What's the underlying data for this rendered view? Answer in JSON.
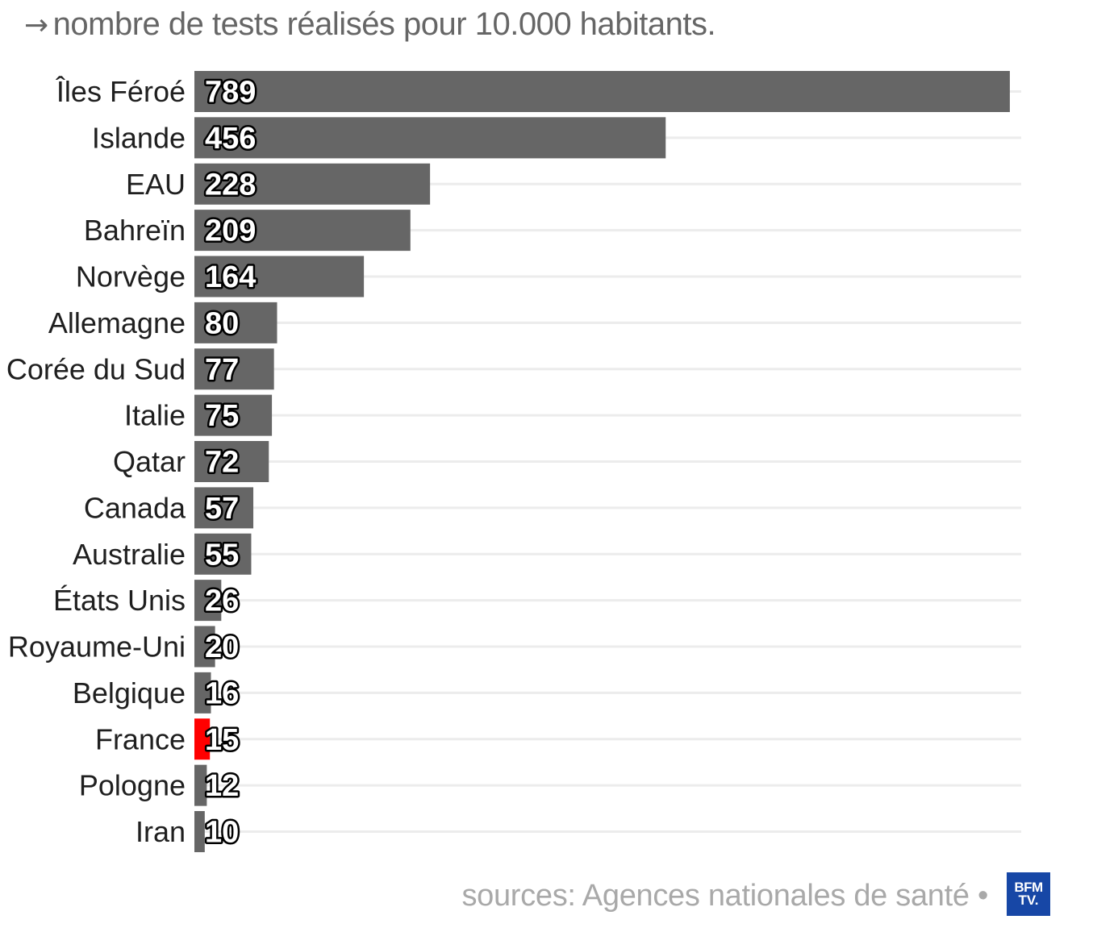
{
  "header": {
    "arrow_glyph": "→",
    "subtitle": "nombre de tests réalisés pour 10.000 habitants."
  },
  "chart_data": {
    "type": "bar",
    "orientation": "horizontal",
    "categories": [
      "Îles Féroé",
      "Islande",
      "EAU",
      "Bahreïn",
      "Norvège",
      "Allemagne",
      "Corée du Sud",
      "Italie",
      "Qatar",
      "Canada",
      "Australie",
      "États Unis",
      "Royaume-Uni",
      "Belgique",
      "France",
      "Pologne",
      "Iran"
    ],
    "values": [
      789,
      456,
      228,
      209,
      164,
      80,
      77,
      75,
      72,
      57,
      55,
      26,
      20,
      16,
      15,
      12,
      10
    ],
    "highlight": "France",
    "xlim": [
      0,
      800
    ],
    "grid": true,
    "legend": "none",
    "colors": {
      "bar": "#666666",
      "highlight": "#ff0000",
      "grid": "#ececec"
    }
  },
  "footer": {
    "source": "sources: Agences nationales de santé •",
    "logo_line1": "BFM",
    "logo_line2": "TV."
  }
}
